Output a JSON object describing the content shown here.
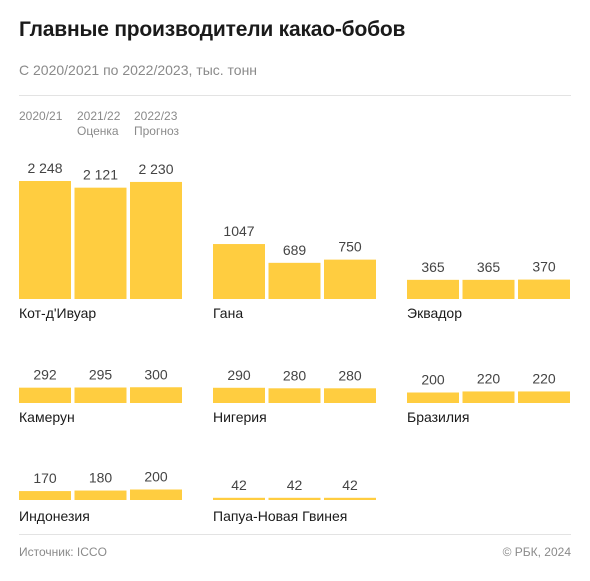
{
  "title": "Главные производители какао-бобов",
  "subtitle": "С 2020/2021 по 2022/2023, тыс. тонн",
  "footer": {
    "source": "Источник: ICCO",
    "copyright": "© РБК, 2024"
  },
  "colors": {
    "bar": "#FFCD40",
    "text": "#1a1a1a",
    "muted": "#8a8a8a",
    "rule": "#e3e3e3"
  },
  "chart_data": {
    "type": "bar",
    "title": "Главные производители какао-бобов",
    "subtitle": "С 2020/2021 по 2022/2023, тыс. тонн",
    "categories": [
      "2020/21",
      "2021/22 Оценка",
      "2022/23 Прогноз"
    ],
    "column_headers": [
      {
        "line1": "2020/21",
        "line2": ""
      },
      {
        "line1": "2021/22",
        "line2": "Оценка"
      },
      {
        "line1": "2022/23",
        "line2": "Прогноз"
      }
    ],
    "value_scale": "shared across panels",
    "grid": false,
    "legend": "none",
    "panels": [
      {
        "country": "Кот-д'Ивуар",
        "values": [
          2248,
          2121,
          2230
        ],
        "labels": [
          "2 248",
          "2 121",
          "2 230"
        ]
      },
      {
        "country": "Гана",
        "values": [
          1047,
          689,
          750
        ],
        "labels": [
          "1047",
          "689",
          "750"
        ]
      },
      {
        "country": "Эквадор",
        "values": [
          365,
          365,
          370
        ],
        "labels": [
          "365",
          "365",
          "370"
        ]
      },
      {
        "country": "Камерун",
        "values": [
          292,
          295,
          300
        ],
        "labels": [
          "292",
          "295",
          "300"
        ]
      },
      {
        "country": "Нигерия",
        "values": [
          290,
          280,
          280
        ],
        "labels": [
          "290",
          "280",
          "280"
        ]
      },
      {
        "country": "Бразилия",
        "values": [
          200,
          220,
          220
        ],
        "labels": [
          "200",
          "220",
          "220"
        ]
      },
      {
        "country": "Индонезия",
        "values": [
          170,
          180,
          200
        ],
        "labels": [
          "170",
          "180",
          "200"
        ]
      },
      {
        "country": "Папуа-Новая Гвинея",
        "values": [
          42,
          42,
          42
        ],
        "labels": [
          "42",
          "42",
          "42"
        ]
      }
    ]
  }
}
